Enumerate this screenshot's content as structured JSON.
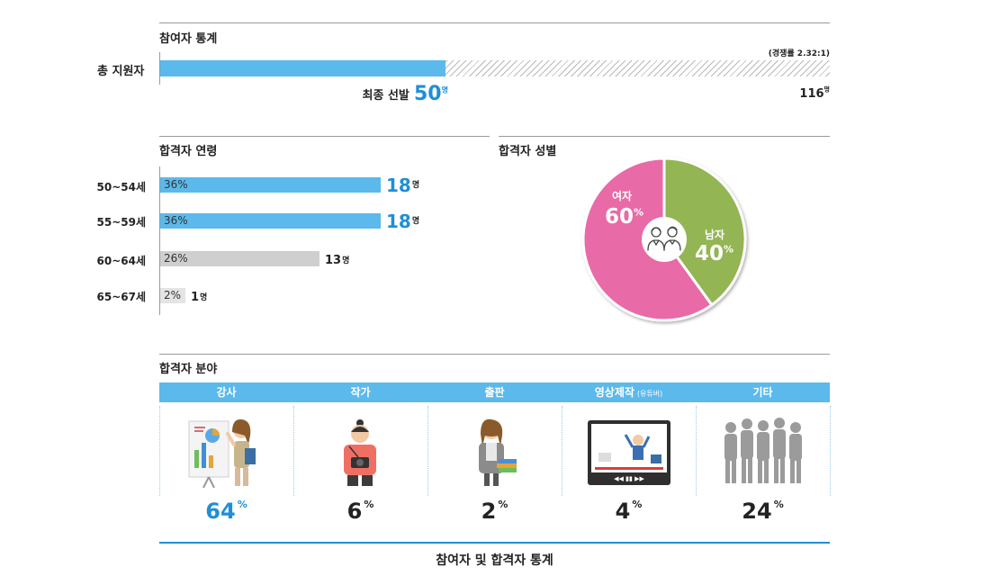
{
  "top": {
    "section_title": "참여자 통계",
    "row_label": "총 지원자",
    "competition_note": "(경쟁률 2.32:1)",
    "selected_label": "최종 선발",
    "selected_value": "50",
    "selected_unit": "명",
    "total_value": "116",
    "total_unit": "명"
  },
  "age": {
    "section_title": "합격자 연령",
    "rows": [
      {
        "label": "50~54세",
        "pct": "36%",
        "count": "18",
        "unit": "명"
      },
      {
        "label": "55~59세",
        "pct": "36%",
        "count": "18",
        "unit": "명"
      },
      {
        "label": "60~64세",
        "pct": "26%",
        "count": "13",
        "unit": "명"
      },
      {
        "label": "65~67세",
        "pct": "2%",
        "count": "1",
        "unit": "명"
      }
    ]
  },
  "gender": {
    "section_title": "합격자 성별",
    "female_label": "여자",
    "female_pct": "60",
    "male_label": "남자",
    "male_pct": "40",
    "pct_unit": "%"
  },
  "fields": {
    "section_title": "합격자 분야",
    "items": [
      {
        "name": "강사",
        "sub": "",
        "pct": "64"
      },
      {
        "name": "작가",
        "sub": "",
        "pct": "6"
      },
      {
        "name": "출판",
        "sub": "",
        "pct": "2"
      },
      {
        "name": "영상제작",
        "sub": "(유튜버)",
        "pct": "4"
      },
      {
        "name": "기타",
        "sub": "",
        "pct": "24"
      }
    ],
    "pct_unit": "%"
  },
  "footer": {
    "caption": "참여자 및 합격자 통계"
  },
  "colors": {
    "blue_bar": "#5bb9ec",
    "highlight": "#1f8fd6",
    "female": "#e86aa6",
    "male": "#93b553",
    "gray_bar": "#cfcfcf"
  },
  "chart_data": [
    {
      "type": "bar",
      "categories": [
        "총 지원자"
      ],
      "series": [
        {
          "name": "최종 선발",
          "values": [
            50
          ]
        }
      ],
      "total": 116,
      "annotation": "(경쟁률 2.32:1)"
    },
    {
      "type": "bar",
      "title": "합격자 연령",
      "categories": [
        "50~54세",
        "55~59세",
        "60~64세",
        "65~67세"
      ],
      "values": [
        18,
        18,
        13,
        1
      ],
      "percent_labels": [
        "36%",
        "36%",
        "26%",
        "2%"
      ]
    },
    {
      "type": "pie",
      "title": "합격자 성별",
      "categories": [
        "여자",
        "남자"
      ],
      "values": [
        60,
        40
      ]
    },
    {
      "type": "bar",
      "title": "합격자 분야",
      "categories": [
        "강사",
        "작가",
        "출판",
        "영상제작 (유튜버)",
        "기타"
      ],
      "values": [
        64,
        6,
        2,
        4,
        24
      ]
    }
  ]
}
